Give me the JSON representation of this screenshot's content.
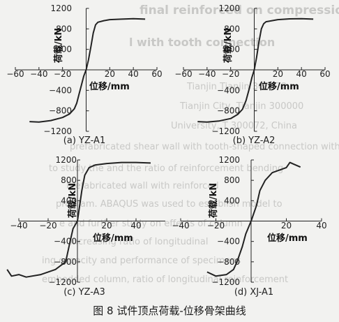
{
  "figure_caption": "图 8   试件顶点荷载-位移骨架曲线",
  "background_text": [
    "final reinforced on compression",
    "l with tooth      connection",
    "Tianjin   Tianjin 300072,",
    "Tianjin City,   Tianjin   300000",
    "University, T   300072, China",
    "prefabricated shear wall with tooth-shaped connection with",
    "to study the   and the ratio of   reinforcement bending",
    "Prefabricated   wall with   reinforced",
    "program. ABAQUS   was used to establish   model to",
    "e and   further study on effects of   column",
    "increasing   ratio of longitudinal",
    "ing capacity and   performance of specimens",
    "embedded column, ratio of longitudinal reinforcement"
  ],
  "chart_data": [
    {
      "type": "line",
      "label": "(a) YZ-A1",
      "xlabel": "位移/mm",
      "ylabel": "荷载/kN",
      "xlim": [
        -60,
        60
      ],
      "ylim": [
        -1200,
        1200
      ],
      "xticks": [
        -60,
        -40,
        -20,
        0,
        20,
        40,
        60
      ],
      "yticks": [
        -1200,
        -800,
        -400,
        0,
        400,
        800,
        1200
      ],
      "x": [
        -48,
        -40,
        -30,
        -20,
        -14,
        -10,
        -8,
        -6,
        -4,
        -2,
        0,
        2,
        4,
        6,
        8,
        10,
        15,
        20,
        30,
        40,
        50
      ],
      "y": [
        -1010,
        -1020,
        -990,
        -930,
        -860,
        -760,
        -650,
        -470,
        -300,
        -120,
        0,
        200,
        450,
        720,
        880,
        930,
        960,
        980,
        990,
        1000,
        990
      ]
    },
    {
      "type": "line",
      "label": "(b) YZ-A2",
      "xlabel": "位移/mm",
      "ylabel": "荷载/kN",
      "xlim": [
        -60,
        60
      ],
      "ylim": [
        -1200,
        1200
      ],
      "xticks": [
        -60,
        -40,
        -20,
        0,
        20,
        40,
        60
      ],
      "yticks": [
        -1200,
        -800,
        -400,
        0,
        400,
        800,
        1200
      ],
      "x": [
        -48,
        -40,
        -30,
        -20,
        -14,
        -10,
        -7,
        -4,
        -2,
        0,
        2,
        4,
        6,
        8,
        10,
        15,
        20,
        30,
        40,
        50
      ],
      "y": [
        -1010,
        -1020,
        -1000,
        -950,
        -870,
        -770,
        -600,
        -350,
        -150,
        0,
        250,
        550,
        800,
        900,
        940,
        960,
        980,
        995,
        1000,
        990
      ]
    },
    {
      "type": "line",
      "label": "(c) YZ-A3",
      "xlabel": "位移/mm",
      "ylabel": "荷载/kN",
      "xlim": [
        -40,
        60
      ],
      "ylim": [
        -1200,
        1200
      ],
      "xticks": [
        -40,
        -20,
        0,
        20,
        40
      ],
      "yticks": [
        -1200,
        -800,
        -400,
        0,
        400,
        800,
        1200
      ],
      "x": [
        -48,
        -45,
        -40,
        -35,
        -25,
        -15,
        -8,
        -5,
        -3,
        0,
        3,
        5,
        8,
        12,
        20,
        30,
        40,
        50
      ],
      "y": [
        -950,
        -1080,
        -1050,
        -1100,
        -1050,
        -950,
        -800,
        -400,
        -150,
        0,
        600,
        900,
        1050,
        1100,
        1130,
        1150,
        1150,
        1140
      ]
    },
    {
      "type": "line",
      "label": "(d) XJ-A1",
      "xlabel": "位移/mm",
      "ylabel": "荷载/kN",
      "xlim": [
        -40,
        40
      ],
      "ylim": [
        -1200,
        1200
      ],
      "xticks": [
        -40,
        -20,
        0,
        20,
        40
      ],
      "yticks": [
        -1200,
        -800,
        -400,
        0,
        400,
        800,
        1200
      ],
      "x": [
        -25,
        -20,
        -14,
        -10,
        -8,
        -5,
        -3,
        0,
        3,
        5,
        8,
        12,
        16,
        20,
        22,
        24,
        28
      ],
      "y": [
        -1000,
        -1080,
        -1050,
        -950,
        -800,
        -500,
        -250,
        0,
        300,
        600,
        800,
        950,
        1000,
        1050,
        1150,
        1120,
        1060
      ]
    }
  ]
}
